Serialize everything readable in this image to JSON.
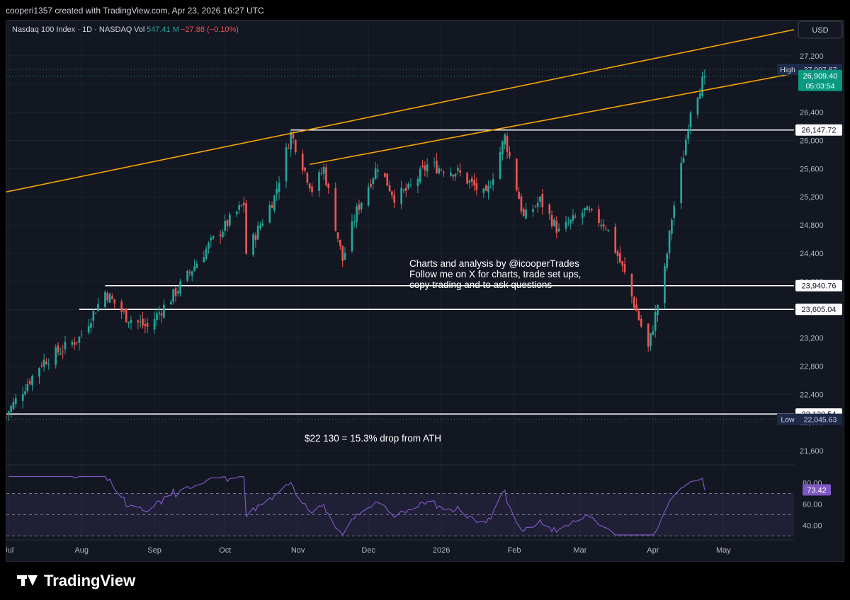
{
  "header": {
    "caption": "cooperi1357 created with TradingView.com, Apr 23, 2026 16:27 UTC",
    "symbol": "Nasdaq 100 Index · 1D · NASDAQ",
    "vol_label": "Vol",
    "vol_value": "547.41 M",
    "change": "−27.88 (−0.10%)",
    "currency": "USD"
  },
  "colors": {
    "background": "#131722",
    "up": "#26a69a",
    "down": "#ef5350",
    "trendline": "#f7a600",
    "level": "#ffffff",
    "rsi": "#7e57c2",
    "price_badge": "#089981"
  },
  "annotations": {
    "note_line1": "Charts and analysis by @icooperTrades",
    "note_line2": "Follow me on X for charts, trade set ups,",
    "note_line3": "copy trading and to ask questions",
    "drop_text": "$22 130 = 15.3% drop from ATH"
  },
  "badges": {
    "high_label": "High",
    "high_value": "27,007.87",
    "last_price": "26,909.40",
    "countdown": "05:03:54",
    "low_label": "Low",
    "low_value": "22,045.63",
    "rsi_value": "73.42"
  },
  "footer": {
    "brand": "TradingView"
  },
  "chart_data": {
    "type": "candlestick",
    "symbol": "Nasdaq 100 Index",
    "interval": "1D",
    "ylim": [
      21400,
      27700
    ],
    "y_ticks": [
      21600,
      22000,
      22400,
      22800,
      23200,
      23600,
      24000,
      24400,
      24800,
      25200,
      25600,
      26000,
      26400,
      26800,
      27200
    ],
    "x_ticks": [
      "Jul",
      "Aug",
      "Sep",
      "Oct",
      "Nov",
      "Dec",
      "2026",
      "Feb",
      "Mar",
      "Apr",
      "May"
    ],
    "x_tick_dates": [
      "2025-07-01",
      "2025-08-01",
      "2025-09-01",
      "2025-10-01",
      "2025-11-01",
      "2025-12-01",
      "2026-01-01",
      "2026-02-01",
      "2026-03-01",
      "2026-04-01",
      "2026-05-01"
    ],
    "date_range": [
      "2025-06-30",
      "2026-05-31"
    ],
    "price_anchors": [
      {
        "date": "2025-06-30",
        "close": 22120
      },
      {
        "date": "2025-07-15",
        "close": 22850
      },
      {
        "date": "2025-07-31",
        "close": 23200
      },
      {
        "date": "2025-08-11",
        "close": 23850
      },
      {
        "date": "2025-08-20",
        "close": 23500
      },
      {
        "date": "2025-08-29",
        "close": 23350
      },
      {
        "date": "2025-09-10",
        "close": 23850
      },
      {
        "date": "2025-09-25",
        "close": 24550
      },
      {
        "date": "2025-10-09",
        "close": 25100
      },
      {
        "date": "2025-10-10",
        "close": 24400
      },
      {
        "date": "2025-10-22",
        "close": 25200
      },
      {
        "date": "2025-10-29",
        "close": 26100
      },
      {
        "date": "2025-11-07",
        "close": 25300
      },
      {
        "date": "2025-11-12",
        "close": 25600
      },
      {
        "date": "2025-11-20",
        "close": 24300
      },
      {
        "date": "2025-11-26",
        "close": 25000
      },
      {
        "date": "2025-12-05",
        "close": 25650
      },
      {
        "date": "2025-12-12",
        "close": 25200
      },
      {
        "date": "2025-12-18",
        "close": 25300
      },
      {
        "date": "2025-12-26",
        "close": 25650
      },
      {
        "date": "2026-01-08",
        "close": 25550
      },
      {
        "date": "2026-01-20",
        "close": 25200
      },
      {
        "date": "2026-01-28",
        "close": 26050
      },
      {
        "date": "2026-02-05",
        "close": 24900
      },
      {
        "date": "2026-02-12",
        "close": 25150
      },
      {
        "date": "2026-02-20",
        "close": 24700
      },
      {
        "date": "2026-03-03",
        "close": 25000
      },
      {
        "date": "2026-03-12",
        "close": 24800
      },
      {
        "date": "2026-03-20",
        "close": 24100
      },
      {
        "date": "2026-03-30",
        "close": 23050
      },
      {
        "date": "2026-04-06",
        "close": 24150
      },
      {
        "date": "2026-04-09",
        "close": 24900
      },
      {
        "date": "2026-04-14",
        "close": 25800
      },
      {
        "date": "2026-04-17",
        "close": 26450
      },
      {
        "date": "2026-04-23",
        "close": 26909.4
      }
    ],
    "high": {
      "date": "2026-04-22",
      "value": 27007.87
    },
    "low": {
      "date": "2025-06-30",
      "value": 22045.63
    },
    "horizontal_levels": [
      {
        "value": 26147.72,
        "label": "26,147.72",
        "from": "2025-10-29"
      },
      {
        "value": 23940.76,
        "label": "23,940.76",
        "from": "2025-08-11"
      },
      {
        "value": 23605.04,
        "label": "23,605.04",
        "from": "2025-07-31"
      },
      {
        "value": 22120.54,
        "label": "22,120.54",
        "from": "2025-06-30"
      }
    ],
    "trendlines": [
      {
        "from": {
          "date": "2025-06-30",
          "value": 25270
        },
        "to": {
          "date": "2026-05-31",
          "value": 27570
        }
      },
      {
        "from": {
          "date": "2025-11-06",
          "value": 25660
        },
        "to": {
          "date": "2026-05-31",
          "value": 26950
        }
      }
    ],
    "rsi": {
      "ylim": [
        29,
        89
      ],
      "ticks": [
        40,
        60,
        80
      ],
      "bands": [
        70,
        50,
        30
      ],
      "last": 73.42
    }
  }
}
